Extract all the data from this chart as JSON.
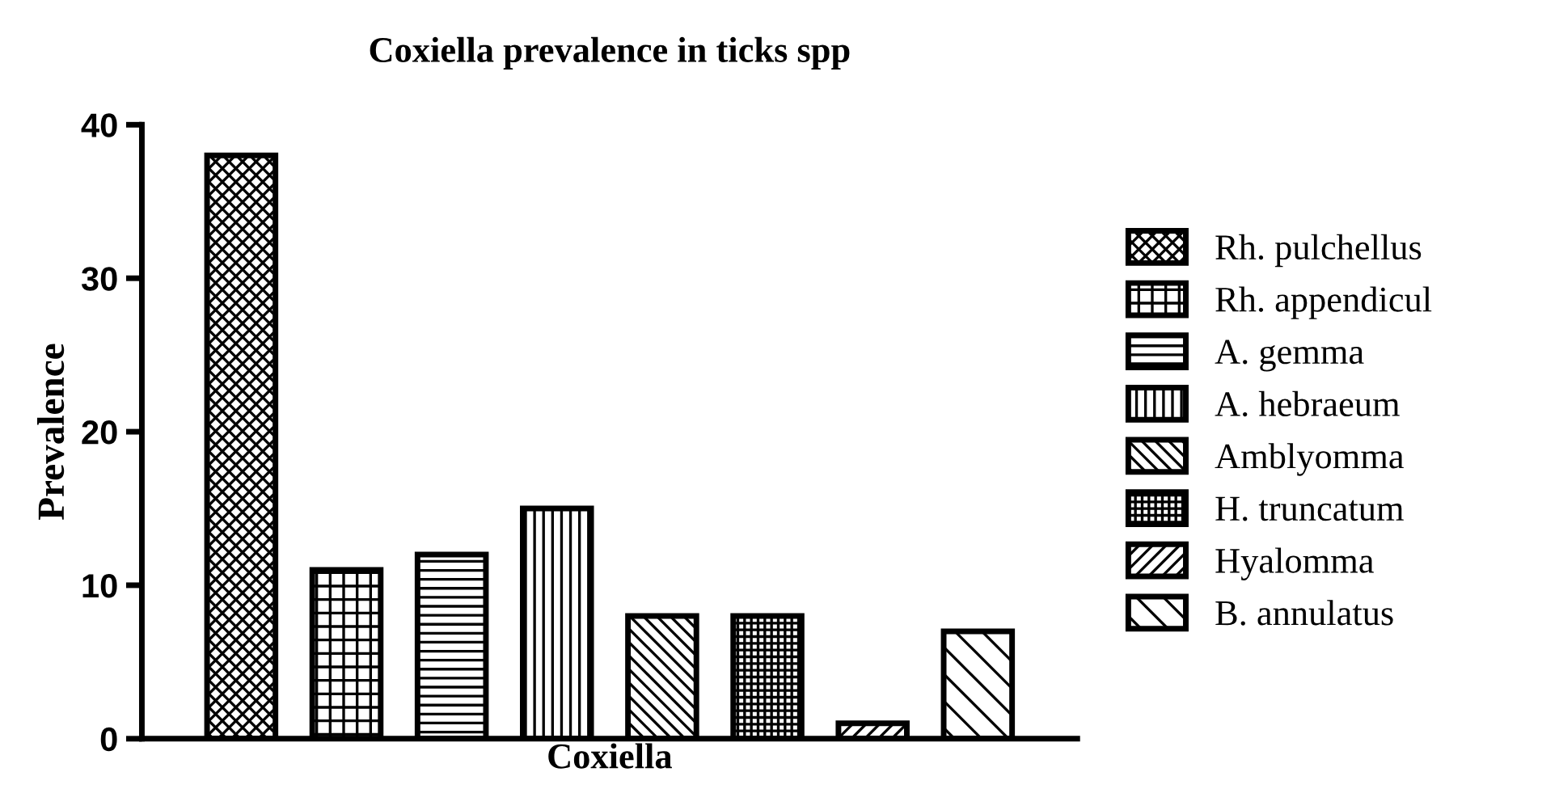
{
  "chart_data": {
    "type": "bar",
    "title": "Coxiella prevalence in ticks spp",
    "ylabel": "Prevalence",
    "categories": [
      "Coxiella"
    ],
    "ylim": [
      0,
      40
    ],
    "yticks": [
      0,
      10,
      20,
      30,
      40
    ],
    "grid": false,
    "legend": "right",
    "series": [
      {
        "name": "Rh. pulchellus",
        "color": "#000000",
        "values": [
          38
        ]
      },
      {
        "name": "Rh. appendicul",
        "color": "#000000",
        "values": [
          11
        ]
      },
      {
        "name": "A. gemma",
        "color": "#000000",
        "values": [
          12
        ]
      },
      {
        "name": "A. hebraeum",
        "color": "#000000",
        "values": [
          15
        ]
      },
      {
        "name": "Amblyomma",
        "color": "#000000",
        "values": [
          8
        ]
      },
      {
        "name": "H. truncatum",
        "color": "#000000",
        "values": [
          8
        ]
      },
      {
        "name": "Hyalomma",
        "color": "#000000",
        "values": [
          1
        ]
      },
      {
        "name": "B. annulatus",
        "color": "#000000",
        "values": [
          7
        ]
      }
    ]
  }
}
